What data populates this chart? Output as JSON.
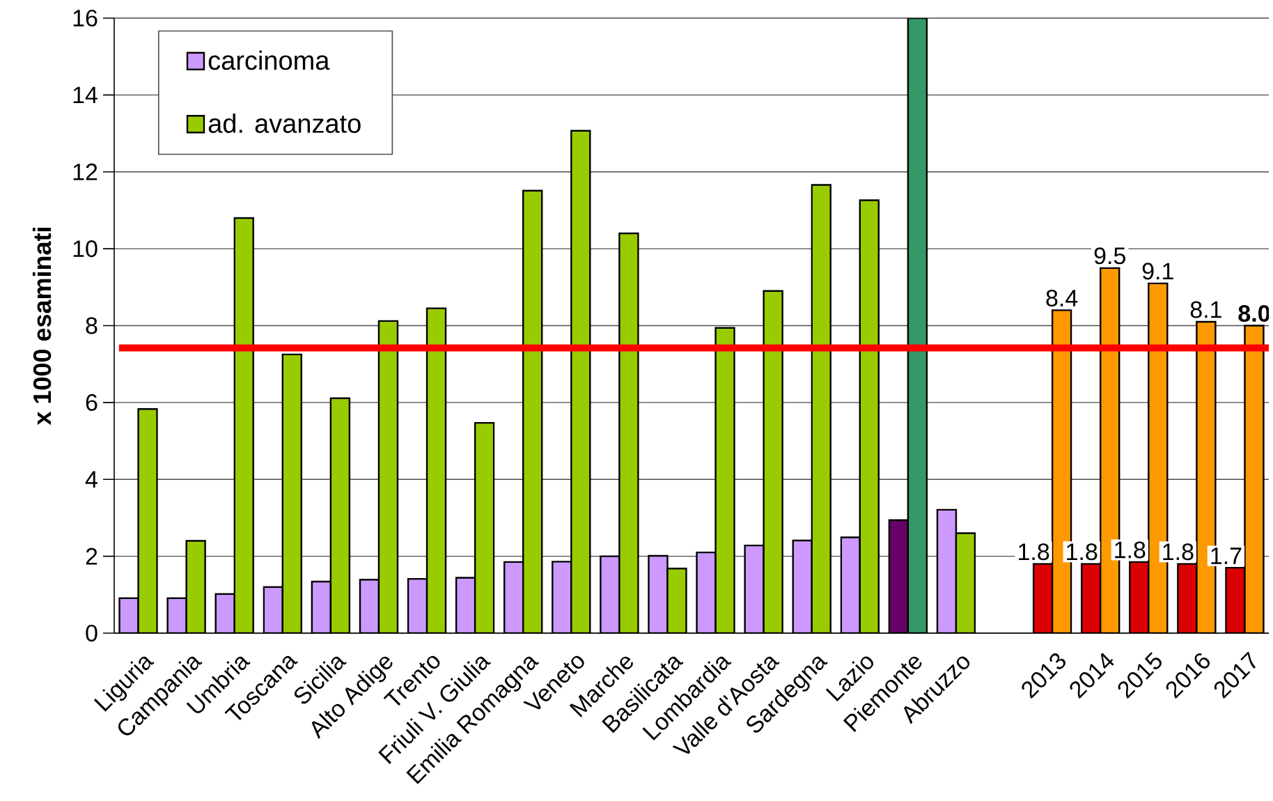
{
  "chart_data": {
    "type": "bar",
    "ylabel": "x 1000 esaminati",
    "categories": [
      "Liguria",
      "Campania",
      "Umbria",
      "Toscana",
      "Sicilia",
      "Alto Adige",
      "Trento",
      "Friuli V. Giulia",
      "Emilia Romagna",
      "Veneto",
      "Marche",
      "Basilicata",
      "Lombardia",
      "Valle d'Aosta",
      "Sardegna",
      "Lazio",
      "Piemonte",
      "Abruzzo",
      null,
      "2013",
      "2014",
      "2015",
      "2016",
      "2017"
    ],
    "series": [
      {
        "name": "carcinoma",
        "color": "#cc99ff",
        "values": [
          0.91,
          0.91,
          1.02,
          1.2,
          1.34,
          1.39,
          1.41,
          1.44,
          1.85,
          1.86,
          2.0,
          2.01,
          2.1,
          2.28,
          2.41,
          2.49,
          2.94,
          3.21,
          null,
          1.8,
          1.8,
          1.85,
          1.8,
          1.7
        ],
        "colors": [
          "#cc99ff",
          "#cc99ff",
          "#cc99ff",
          "#cc99ff",
          "#cc99ff",
          "#cc99ff",
          "#cc99ff",
          "#cc99ff",
          "#cc99ff",
          "#cc99ff",
          "#cc99ff",
          "#cc99ff",
          "#cc99ff",
          "#cc99ff",
          "#cc99ff",
          "#cc99ff",
          "#660066",
          "#cc99ff",
          null,
          "#dd0000",
          "#dd0000",
          "#dd0000",
          "#dd0000",
          "#dd0000"
        ],
        "value_labels": [
          null,
          null,
          null,
          null,
          null,
          null,
          null,
          null,
          null,
          null,
          null,
          null,
          null,
          null,
          null,
          null,
          null,
          null,
          null,
          "1.8",
          "1.8",
          "1.8",
          "1.8",
          "1.7"
        ]
      },
      {
        "name": "ad. avanzato",
        "color": "#99cc00",
        "values": [
          5.83,
          2.4,
          10.8,
          7.25,
          6.11,
          8.12,
          8.45,
          5.47,
          11.51,
          13.07,
          10.4,
          1.68,
          7.94,
          8.9,
          11.66,
          11.26,
          16,
          2.6,
          null,
          8.4,
          9.5,
          9.1,
          8.1,
          8.0
        ],
        "colors": [
          "#99cc00",
          "#99cc00",
          "#99cc00",
          "#99cc00",
          "#99cc00",
          "#99cc00",
          "#99cc00",
          "#99cc00",
          "#99cc00",
          "#99cc00",
          "#99cc00",
          "#99cc00",
          "#99cc00",
          "#99cc00",
          "#99cc00",
          "#99cc00",
          "#339966",
          "#99cc00",
          null,
          "#ff9900",
          "#ff9900",
          "#ff9900",
          "#ff9900",
          "#ff9900"
        ],
        "value_labels": [
          null,
          null,
          null,
          null,
          null,
          null,
          null,
          null,
          null,
          null,
          null,
          null,
          null,
          null,
          null,
          null,
          null,
          null,
          null,
          "8.4",
          "9.5",
          "9.1",
          "8.1",
          "**8.0**"
        ]
      }
    ],
    "ylim": [
      0,
      16
    ],
    "yticks": [
      0,
      2,
      4,
      6,
      8,
      10,
      12,
      14,
      16
    ],
    "grid": "y",
    "legend": "top left",
    "ref_lines": [
      {
        "axis": "y",
        "value": 7.42,
        "color": "#ff0000"
      }
    ]
  }
}
